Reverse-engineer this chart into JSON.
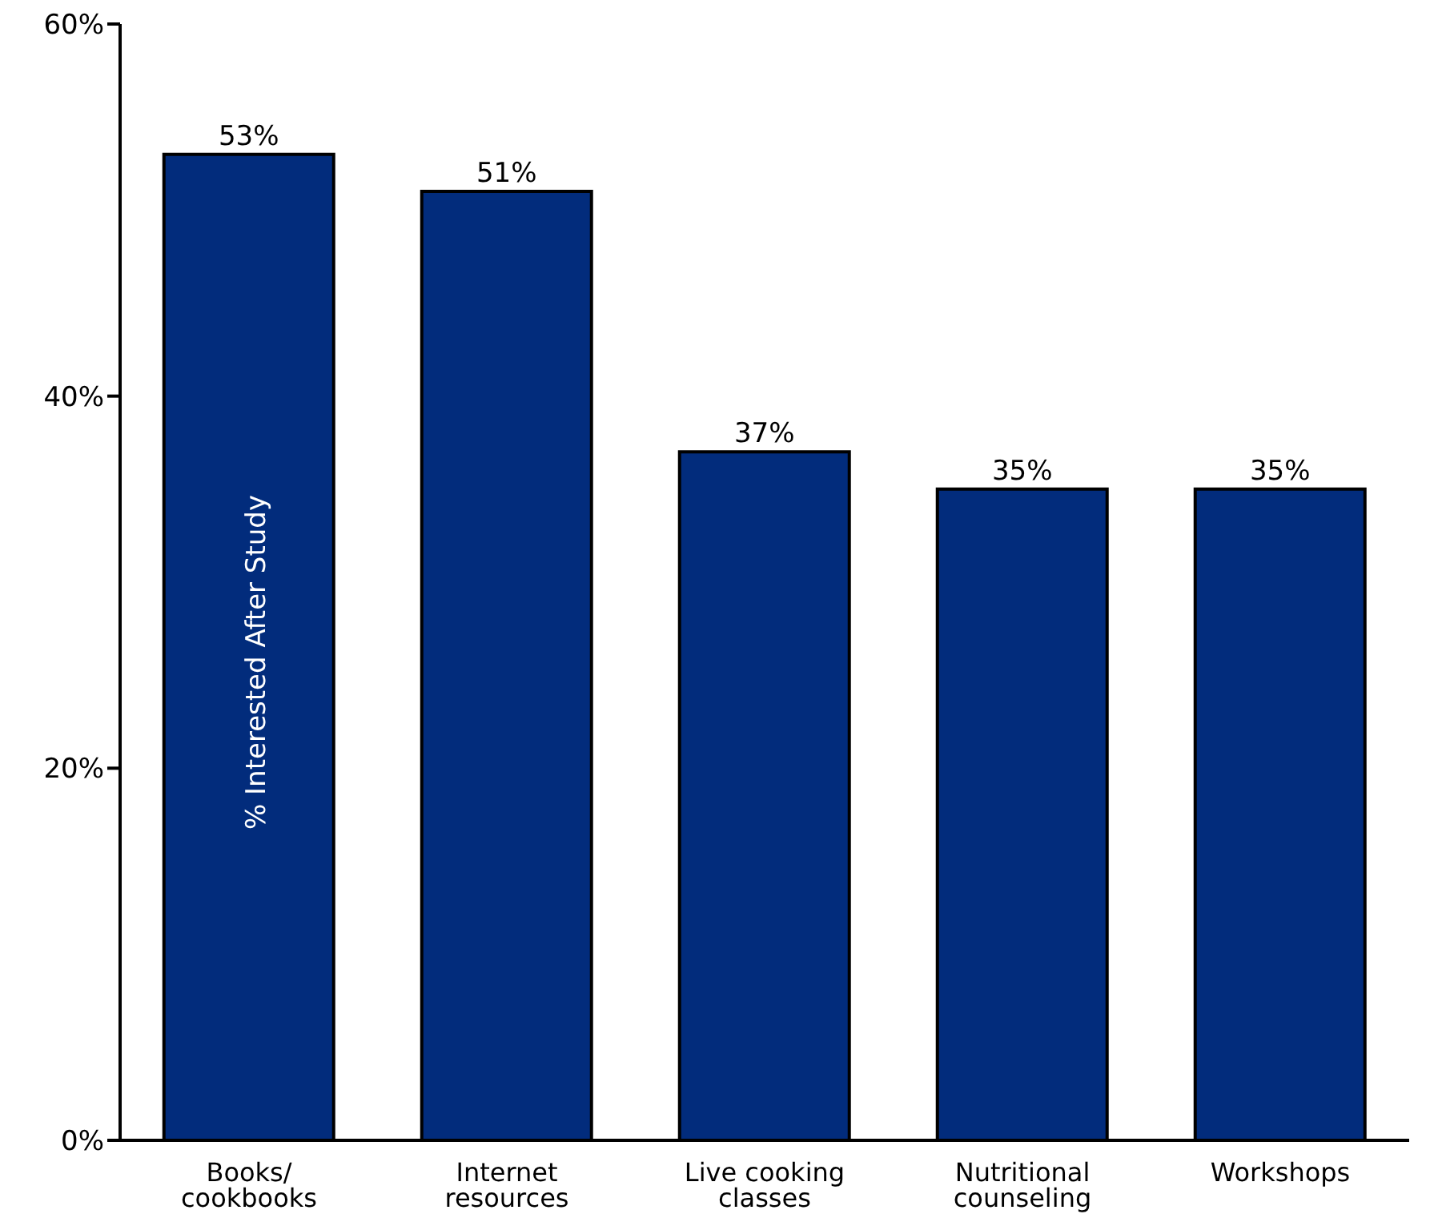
{
  "chart_data": {
    "type": "bar",
    "ylabel": "% Interested After Study",
    "categories": [
      "Books/ cookbooks",
      "Internet resources",
      "Live cooking classes",
      "Nutritional counseling",
      "Workshops"
    ],
    "values": [
      53,
      51,
      37,
      35,
      35
    ],
    "value_labels": [
      "53%",
      "51%",
      "37%",
      "35%",
      "35%"
    ],
    "color": "#022c7c",
    "ylim": [
      0,
      60
    ],
    "yticks": [
      {
        "value": 0,
        "label": "0%"
      },
      {
        "value": 20,
        "label": "20%"
      },
      {
        "value": 40,
        "label": "40%"
      },
      {
        "value": 60,
        "label": "60%"
      }
    ],
    "grid": false,
    "legend": false
  }
}
